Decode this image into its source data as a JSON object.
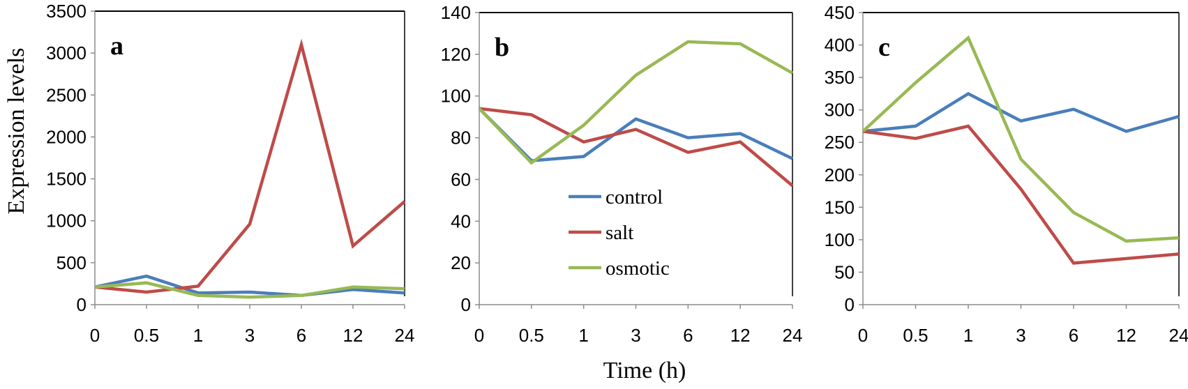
{
  "figure": {
    "ylabel": "Expression levels",
    "xlabel": "Time (h)"
  },
  "legend": [
    {
      "name": "control",
      "color": "#4a7ebb"
    },
    {
      "name": "salt",
      "color": "#be4b48"
    },
    {
      "name": "osmotic",
      "color": "#98b954"
    }
  ],
  "chart_data": [
    {
      "type": "line",
      "panel": "a",
      "categories": [
        "0",
        "0.5",
        "1",
        "3",
        "6",
        "12",
        "24"
      ],
      "ylim": [
        0,
        3500
      ],
      "yticks": [
        0,
        500,
        1000,
        1500,
        2000,
        2500,
        3000,
        3500
      ],
      "series": [
        {
          "name": "control",
          "values": [
            210,
            340,
            140,
            150,
            110,
            180,
            140
          ]
        },
        {
          "name": "salt",
          "values": [
            210,
            150,
            220,
            960,
            3100,
            700,
            1230
          ]
        },
        {
          "name": "osmotic",
          "values": [
            210,
            260,
            110,
            90,
            110,
            210,
            190
          ]
        }
      ]
    },
    {
      "type": "line",
      "panel": "b",
      "categories": [
        "0",
        "0.5",
        "1",
        "3",
        "6",
        "12",
        "24"
      ],
      "ylim": [
        0,
        140
      ],
      "yticks": [
        0,
        20,
        40,
        60,
        80,
        100,
        120,
        140
      ],
      "series": [
        {
          "name": "control",
          "values": [
            94,
            69,
            71,
            89,
            80,
            82,
            70
          ]
        },
        {
          "name": "salt",
          "values": [
            94,
            91,
            78,
            84,
            73,
            78,
            57
          ]
        },
        {
          "name": "osmotic",
          "values": [
            94,
            68,
            86,
            110,
            126,
            125,
            111
          ]
        }
      ]
    },
    {
      "type": "line",
      "panel": "c",
      "categories": [
        "0",
        "0.5",
        "1",
        "3",
        "6",
        "12",
        "24"
      ],
      "ylim": [
        0,
        450
      ],
      "yticks": [
        0,
        50,
        100,
        150,
        200,
        250,
        300,
        350,
        400,
        450
      ],
      "series": [
        {
          "name": "control",
          "values": [
            267,
            275,
            325,
            283,
            301,
            267,
            290
          ]
        },
        {
          "name": "salt",
          "values": [
            267,
            256,
            275,
            178,
            64,
            71,
            78
          ]
        },
        {
          "name": "osmotic",
          "values": [
            267,
            342,
            411,
            224,
            142,
            98,
            103
          ]
        }
      ]
    }
  ]
}
